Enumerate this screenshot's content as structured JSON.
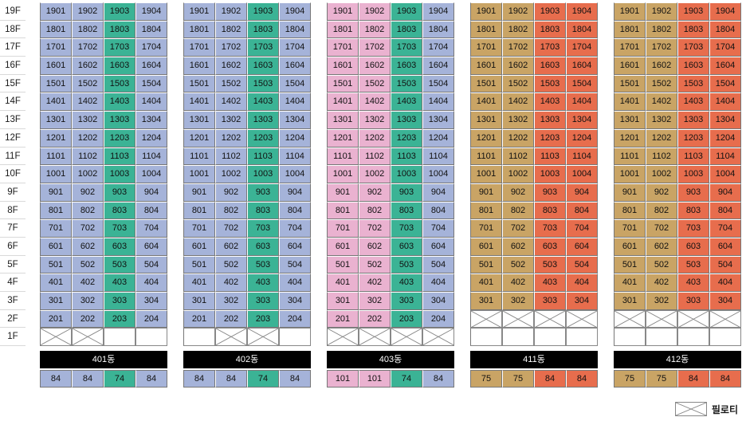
{
  "floors": [
    "19F",
    "18F",
    "17F",
    "16F",
    "15F",
    "14F",
    "13F",
    "12F",
    "11F",
    "10F",
    "9F",
    "8F",
    "7F",
    "6F",
    "5F",
    "4F",
    "3F",
    "2F",
    "1F"
  ],
  "colors": {
    "blue": "#a5b3d9",
    "teal": "#3bb395",
    "pink": "#eab2d0",
    "tan": "#c9a465",
    "red": "#e76d4d"
  },
  "buildings": [
    {
      "name": "401동",
      "column_colors": [
        "blue",
        "blue",
        "teal",
        "blue"
      ],
      "lowest_unit_floor": 2,
      "floor1": [
        "pilotis",
        "pilotis",
        "empty",
        "empty"
      ],
      "sizes": [
        "84",
        "84",
        "74",
        "84"
      ],
      "size_colors": [
        "blue",
        "blue",
        "teal",
        "blue"
      ]
    },
    {
      "name": "402동",
      "column_colors": [
        "blue",
        "blue",
        "teal",
        "blue"
      ],
      "lowest_unit_floor": 2,
      "floor1": [
        "empty",
        "pilotis",
        "pilotis",
        "empty"
      ],
      "sizes": [
        "84",
        "84",
        "74",
        "84"
      ],
      "size_colors": [
        "blue",
        "blue",
        "teal",
        "blue"
      ]
    },
    {
      "name": "403동",
      "column_colors": [
        "pink",
        "pink",
        "teal",
        "blue"
      ],
      "lowest_unit_floor": 2,
      "floor1": [
        "pilotis",
        "pilotis",
        "pilotis",
        "pilotis"
      ],
      "sizes": [
        "101",
        "101",
        "74",
        "84"
      ],
      "size_colors": [
        "pink",
        "pink",
        "teal",
        "blue"
      ]
    },
    {
      "name": "411동",
      "column_colors": [
        "tan",
        "tan",
        "red",
        "red"
      ],
      "lowest_unit_floor": 3,
      "floor2": [
        "pilotis",
        "pilotis",
        "pilotis",
        "pilotis"
      ],
      "floor1": [
        "empty",
        "empty",
        "empty",
        "empty"
      ],
      "sizes": [
        "75",
        "75",
        "84",
        "84"
      ],
      "size_colors": [
        "tan",
        "tan",
        "red",
        "red"
      ]
    },
    {
      "name": "412동",
      "column_colors": [
        "tan",
        "tan",
        "red",
        "red"
      ],
      "lowest_unit_floor": 3,
      "floor2": [
        "pilotis",
        "pilotis",
        "pilotis",
        "pilotis"
      ],
      "floor1": [
        "empty",
        "empty",
        "empty",
        "empty"
      ],
      "sizes": [
        "75",
        "75",
        "84",
        "84"
      ],
      "size_colors": [
        "tan",
        "tan",
        "red",
        "red"
      ]
    }
  ],
  "legend": {
    "label": "필로티",
    "icon": "pilotis-cross-icon"
  }
}
